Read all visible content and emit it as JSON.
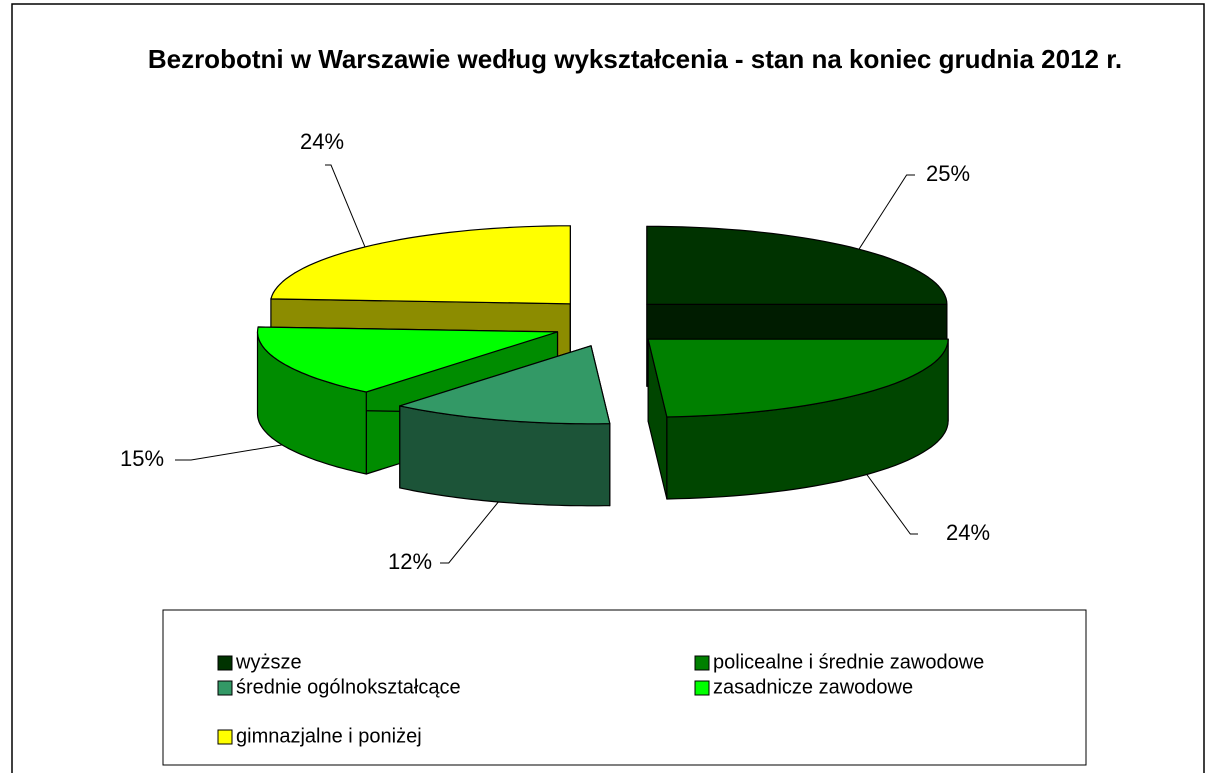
{
  "chart_data": {
    "type": "pie",
    "title": "Bezrobotni w Warszawie według wykształcenia - stan na koniec grudnia 2012 r.",
    "categories": [
      "wyższe",
      "policealne i średnie zawodowe",
      "średnie ogólnokształcące",
      "zasadnicze zawodowe",
      "gimnazjalne i poniżej"
    ],
    "values": [
      25,
      24,
      12,
      15,
      24
    ],
    "value_labels": [
      "25%",
      "24%",
      "12%",
      "15%",
      "24%"
    ],
    "colors": [
      "#003300",
      "#008000",
      "#339966",
      "#00ff00",
      "#ffff00"
    ],
    "legend": "bottom"
  }
}
